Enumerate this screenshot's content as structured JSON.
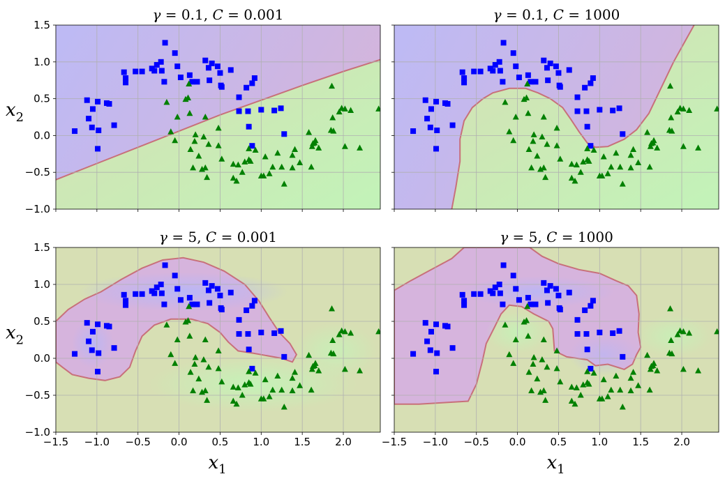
{
  "colors": {
    "blue_region": "#b9b9f3",
    "purple_region": "#d6b4dd",
    "olive_region": "#d7dfb4",
    "green_region": "#c3f3b8",
    "boundary": "#c8707a",
    "grid": "#b0b0b0",
    "class0_marker": "#0000ff",
    "class1_marker": "#008000"
  },
  "chart_data": [
    {
      "type": "scatter",
      "title": "γ = 0.1, C = 0.001",
      "title_parts": {
        "gamma_sym": "γ",
        "eq": " = ",
        "gamma_val": "0.1",
        "sep": ", ",
        "c_sym": "C",
        "c_eq": " = ",
        "c_val": "0.001"
      },
      "xlim": [
        -1.5,
        2.45
      ],
      "ylim": [
        -1.0,
        1.5
      ],
      "xlabel": "",
      "ylabel": "x2",
      "show_xticklabels": false,
      "show_yticklabels": true,
      "grid": true
    },
    {
      "type": "scatter",
      "title": "γ = 0.1, C = 1000",
      "title_parts": {
        "gamma_sym": "γ",
        "eq": " = ",
        "gamma_val": "0.1",
        "sep": ", ",
        "c_sym": "C",
        "c_eq": " = ",
        "c_val": "1000"
      },
      "xlim": [
        -1.5,
        2.45
      ],
      "ylim": [
        -1.0,
        1.5
      ],
      "xlabel": "",
      "ylabel": "",
      "show_xticklabels": false,
      "show_yticklabels": false,
      "grid": true
    },
    {
      "type": "scatter",
      "title": "γ = 5, C = 0.001",
      "title_parts": {
        "gamma_sym": "γ",
        "eq": " = ",
        "gamma_val": "5",
        "sep": ", ",
        "c_sym": "C",
        "c_eq": " = ",
        "c_val": "0.001"
      },
      "xlim": [
        -1.5,
        2.45
      ],
      "ylim": [
        -1.0,
        1.5
      ],
      "xlabel": "x1",
      "ylabel": "x2",
      "show_xticklabels": true,
      "show_yticklabels": true,
      "grid": true
    },
    {
      "type": "scatter",
      "title": "γ = 5, C = 1000",
      "title_parts": {
        "gamma_sym": "γ",
        "eq": " = ",
        "gamma_val": "5",
        "sep": ", ",
        "c_sym": "C",
        "c_eq": " = ",
        "c_val": "1000"
      },
      "xlim": [
        -1.5,
        2.45
      ],
      "ylim": [
        -1.0,
        1.5
      ],
      "xlabel": "x1",
      "ylabel": "",
      "show_xticklabels": true,
      "show_yticklabels": false,
      "grid": true
    }
  ],
  "axes": {
    "xticks": [
      -1.5,
      -1.0,
      -0.5,
      0.0,
      0.5,
      1.0,
      1.5,
      2.0
    ],
    "xtick_labels": [
      "−1.5",
      "−1.0",
      "−0.5",
      "0.0",
      "0.5",
      "1.0",
      "1.5",
      "2.0"
    ],
    "yticks": [
      -1.0,
      -0.5,
      0.0,
      0.5,
      1.0,
      1.5
    ],
    "ytick_labels": [
      "−1.0",
      "−0.5",
      "0.0",
      "0.5",
      "1.0",
      "1.5"
    ],
    "xlabel_main": "x",
    "xlabel_sub": "1",
    "ylabel_main": "x",
    "ylabel_sub": "2"
  },
  "points": {
    "class0": [
      [
        -1.27,
        0.06
      ],
      [
        -1.12,
        0.48
      ],
      [
        -1.1,
        0.23
      ],
      [
        -1.05,
        0.36
      ],
      [
        -1.06,
        0.11
      ],
      [
        -0.99,
        0.46
      ],
      [
        -0.98,
        0.07
      ],
      [
        -0.99,
        -0.18
      ],
      [
        -0.88,
        0.44
      ],
      [
        -0.85,
        0.43
      ],
      [
        -0.79,
        0.14
      ],
      [
        -0.67,
        0.86
      ],
      [
        -0.65,
        0.78
      ],
      [
        -0.65,
        0.72
      ],
      [
        -0.53,
        0.87
      ],
      [
        -0.45,
        0.87
      ],
      [
        -0.33,
        0.91
      ],
      [
        -0.3,
        0.88
      ],
      [
        -0.27,
        0.96
      ],
      [
        -0.22,
        1.0
      ],
      [
        -0.21,
        0.88
      ],
      [
        -0.18,
        0.73
      ],
      [
        -0.17,
        1.26
      ],
      [
        -0.05,
        1.12
      ],
      [
        -0.02,
        0.94
      ],
      [
        0.02,
        0.79
      ],
      [
        0.13,
        0.82
      ],
      [
        0.16,
        0.73
      ],
      [
        0.22,
        0.73
      ],
      [
        0.32,
        1.02
      ],
      [
        0.36,
        0.92
      ],
      [
        0.37,
        0.75
      ],
      [
        0.4,
        0.98
      ],
      [
        0.47,
        0.94
      ],
      [
        0.5,
        0.85
      ],
      [
        0.51,
        0.68
      ],
      [
        0.52,
        0.66
      ],
      [
        0.63,
        0.89
      ],
      [
        0.73,
        0.52
      ],
      [
        0.73,
        0.33
      ],
      [
        0.82,
        0.65
      ],
      [
        0.84,
        0.33
      ],
      [
        0.85,
        0.12
      ],
      [
        0.89,
        0.71
      ],
      [
        0.92,
        0.78
      ],
      [
        0.89,
        -0.14
      ],
      [
        1.0,
        0.35
      ],
      [
        1.16,
        0.34
      ],
      [
        1.24,
        0.37
      ],
      [
        1.28,
        0.02
      ]
    ],
    "class1": [
      [
        -0.02,
        0.25
      ],
      [
        -0.05,
        -0.07
      ],
      [
        -0.1,
        0.05
      ],
      [
        -0.15,
        0.45
      ],
      [
        0.08,
        0.49
      ],
      [
        0.11,
        0.51
      ],
      [
        0.2,
        0.01
      ],
      [
        0.14,
        -0.19
      ],
      [
        0.12,
        0.7
      ],
      [
        0.13,
        0.3
      ],
      [
        0.17,
        -0.44
      ],
      [
        0.19,
        -0.08
      ],
      [
        0.24,
        -0.28
      ],
      [
        0.3,
        -0.02
      ],
      [
        0.28,
        -0.46
      ],
      [
        0.32,
        -0.44
      ],
      [
        0.36,
        -0.12
      ],
      [
        0.32,
        0.25
      ],
      [
        0.34,
        -0.57
      ],
      [
        0.48,
        -0.14
      ],
      [
        0.52,
        -0.32
      ],
      [
        0.48,
        0.1
      ],
      [
        0.66,
        -0.58
      ],
      [
        0.7,
        -0.62
      ],
      [
        0.72,
        -0.4
      ],
      [
        0.66,
        -0.39
      ],
      [
        0.8,
        -0.36
      ],
      [
        0.77,
        -0.5
      ],
      [
        0.85,
        -0.18
      ],
      [
        0.85,
        -0.33
      ],
      [
        0.87,
        -0.35
      ],
      [
        0.93,
        -0.2
      ],
      [
        1.0,
        -0.55
      ],
      [
        1.03,
        -0.55
      ],
      [
        1.1,
        -0.52
      ],
      [
        1.05,
        -0.29
      ],
      [
        1.14,
        -0.43
      ],
      [
        1.2,
        -0.24
      ],
      [
        1.25,
        -0.43
      ],
      [
        1.28,
        -0.66
      ],
      [
        1.38,
        -0.27
      ],
      [
        1.38,
        -0.44
      ],
      [
        1.41,
        -0.19
      ],
      [
        1.47,
        -0.37
      ],
      [
        1.61,
        -0.43
      ],
      [
        1.58,
        0.04
      ],
      [
        1.63,
        -0.11
      ],
      [
        1.65,
        -0.1
      ],
      [
        1.66,
        -0.07
      ],
      [
        1.62,
        -0.15
      ],
      [
        1.7,
        -0.17
      ],
      [
        1.85,
        0.07
      ],
      [
        1.87,
        0.24
      ],
      [
        1.86,
        0.67
      ],
      [
        1.95,
        0.32
      ],
      [
        1.98,
        0.37
      ],
      [
        2.02,
        -0.15
      ],
      [
        2.02,
        0.36
      ],
      [
        2.09,
        0.34
      ],
      [
        2.2,
        -0.17
      ],
      [
        2.43,
        0.36
      ],
      [
        1.88,
        0.06
      ]
    ]
  }
}
